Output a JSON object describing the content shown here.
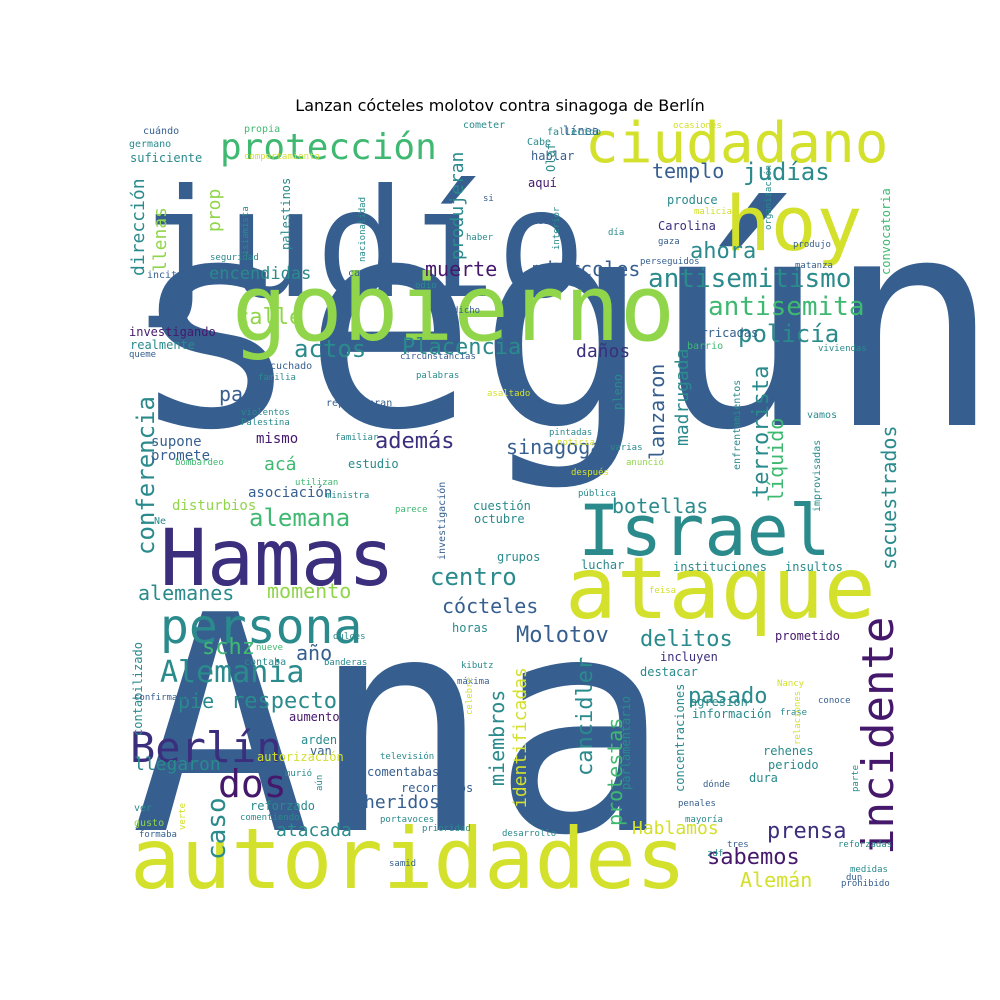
{
  "title": "Lanzan cócteles molotov contra sinagoga de Berlín",
  "colors": {
    "navy": "#3b2f7d",
    "purple": "#46186b",
    "blue": "#365f8f",
    "teal": "#2a8a8c",
    "green": "#3fb971",
    "lime": "#91d54b",
    "yellow": "#d3e02c",
    "pale": "#b9dd6a"
  },
  "words": [
    "según",
    "Ana",
    "judío",
    "autoridades",
    "gobierno",
    "Hamas",
    "ataque",
    "Israel",
    "hoy",
    "ciudadano",
    "persona",
    "Berlín",
    "incidente",
    "protección",
    "antisemitismo",
    "antisemita",
    "Alemania",
    "dos",
    "judías",
    "Placencia",
    "actos",
    "policía",
    "muerte",
    "miércoles",
    "ahora",
    "templo",
    "calle",
    "encendidas",
    "dirección",
    "llenas",
    "prop",
    "conferencia",
    "alemana",
    "además",
    "país",
    "centro",
    "Molotov",
    "cócteles",
    "delitos",
    "schz",
    "año",
    "momento",
    "alemanes",
    "respecto",
    "pie",
    "sabemos",
    "prensa",
    "caso",
    "cancidler",
    "protestas",
    "miembros",
    "identificadas",
    "terrorista",
    "secuestrados",
    "líquido",
    "lanzaron",
    "madrugada",
    "sinagoga",
    "botellas",
    "pasado",
    "Alemán",
    "Hablamos",
    "heridos",
    "atacada",
    "llegaron",
    "produjeran",
    "daños",
    "acá",
    "mismo",
    "supone",
    "promete",
    "asociación",
    "disturbios",
    "barricadas",
    "investigando",
    "realmente",
    "suficiente",
    "cuándo",
    "propia",
    "germano",
    "línea",
    "hablar",
    "aquí",
    "Olaf",
    "produce",
    "Carolina",
    "convocatoria",
    "palestinos",
    "información",
    "aumento",
    "arden",
    "van",
    "comentabas",
    "recordemos",
    "periodo",
    "dura",
    "rehenes",
    "vamos",
    "enfrentamientos",
    "improvisadas",
    "concentraciones",
    "parlamentario",
    "agresión",
    "prometido",
    "incluyen",
    "destacar",
    "horas",
    "grupos",
    "luchar",
    "instituciones",
    "insultos",
    "contabilizado",
    "contaba",
    "ver",
    "gusto",
    "reforzado",
    "cuestión",
    "octubre",
    "autorización",
    "pleno",
    "estudio",
    "Cabe",
    "fallecido",
    "cometer",
    "ocasiones",
    "comportamiento",
    "isiamista",
    "nacionalidad",
    "incitar",
    "capital",
    "odio",
    "dicho",
    "queme",
    "escuchado",
    "familia",
    "violentos",
    "Palestina",
    "bombardeo",
    "familiar",
    "repartieran",
    "utilizan",
    "ministra",
    "parece",
    "investigación",
    "palabras",
    "asaltado",
    "pintadas",
    "noticia",
    "varias",
    "después",
    "anunció",
    "pública",
    "circunstancias",
    "barrio",
    "viviendas",
    "si",
    "haber",
    "sido",
    "interior",
    "día",
    "gaza",
    "malicia",
    "organización",
    "produjo",
    "matanza",
    "perseguidos",
    "seguridad",
    "Ne",
    "banderas",
    "nueve",
    "dulces",
    "kibutz",
    "feisa",
    "máxima",
    "celebre",
    "conoce",
    "frase",
    "Nancy",
    "relaciones",
    "confirmado",
    "televisión",
    "aún",
    "murió",
    "verte",
    "comentiendo",
    "portavoces",
    "prioridad",
    "desarrollo",
    "mayoría",
    "penales",
    "dónde",
    "tres",
    "reforzadas",
    "medidas",
    "dun",
    "prohibido",
    "zdf",
    "samid",
    "formaba",
    "parte"
  ]
}
